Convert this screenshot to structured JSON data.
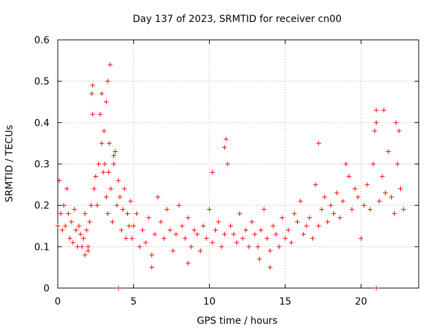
{
  "chart_data": {
    "type": "scatter",
    "title": "Day 137 of 2023, SRMTID for receiver cn00",
    "xlabel": "GPS time / hours",
    "ylabel": "SRMTID / TECUs",
    "xlim": [
      0,
      23.8
    ],
    "ylim": [
      0,
      0.6
    ],
    "xticks": [
      0,
      5,
      10,
      15,
      20
    ],
    "xtick_labels": [
      "0",
      "5",
      "10",
      "15",
      "20"
    ],
    "yticks": [
      0,
      0.1,
      0.2,
      0.3,
      0.4,
      0.5,
      0.6
    ],
    "ytick_labels": [
      "0",
      "0.1",
      "0.2",
      "0.3",
      "0.4",
      "0.5",
      "0.6"
    ],
    "grid": true,
    "marker": "+",
    "color": "#ff0000",
    "series": [
      {
        "name": "SRMTID",
        "x": [
          0.0,
          0.1,
          0.2,
          0.3,
          0.4,
          0.5,
          0.6,
          0.7,
          0.8,
          0.9,
          1.0,
          1.1,
          1.2,
          1.3,
          1.4,
          1.5,
          1.6,
          1.7,
          1.8,
          1.9,
          2.0,
          2.1,
          2.2,
          2.25,
          2.3,
          2.4,
          2.5,
          2.6,
          2.7,
          2.8,
          2.9,
          3.0,
          3.05,
          3.1,
          3.2,
          3.3,
          3.35,
          3.4,
          3.5,
          3.6,
          3.7,
          3.8,
          3.9,
          4.0,
          4.1,
          4.2,
          4.3,
          4.4,
          4.5,
          4.6,
          4.7,
          4.8,
          4.9,
          5.0,
          5.2,
          5.4,
          5.6,
          5.8,
          6.0,
          6.2,
          6.4,
          6.6,
          6.8,
          7.0,
          7.2,
          7.4,
          7.6,
          7.8,
          8.0,
          8.2,
          8.4,
          8.6,
          8.8,
          9.0,
          9.2,
          9.4,
          9.6,
          9.8,
          10.0,
          10.2,
          10.4,
          10.6,
          10.8,
          11.0,
          11.2,
          11.4,
          11.6,
          11.8,
          12.0,
          12.2,
          12.4,
          12.6,
          12.8,
          13.0,
          13.2,
          13.4,
          13.6,
          13.8,
          14.0,
          14.2,
          14.4,
          14.6,
          14.8,
          15.0,
          15.2,
          15.4,
          15.6,
          15.8,
          16.0,
          16.2,
          16.4,
          16.6,
          16.8,
          17.0,
          17.2,
          17.4,
          17.6,
          17.8,
          18.0,
          18.2,
          18.4,
          18.6,
          18.8,
          19.0,
          19.2,
          19.4,
          19.6,
          19.8,
          20.0,
          20.2,
          20.4,
          20.6,
          20.8,
          21.0,
          21.2,
          21.4,
          21.6,
          21.8,
          22.0,
          22.2,
          22.4,
          22.6,
          22.8,
          3.45,
          3.3,
          2.3,
          3.2,
          2.9,
          3.7,
          11.1,
          11.0,
          10.2,
          17.2,
          21.0,
          20.9,
          21.5,
          22.3,
          22.5,
          4.0,
          21.0,
          2.0,
          1.8,
          6.2,
          8.6,
          13.3,
          14.0
        ],
        "y": [
          0.15,
          0.26,
          0.18,
          0.14,
          0.2,
          0.15,
          0.24,
          0.18,
          0.12,
          0.16,
          0.11,
          0.19,
          0.14,
          0.1,
          0.15,
          0.13,
          0.1,
          0.12,
          0.18,
          0.14,
          0.1,
          0.16,
          0.2,
          0.47,
          0.42,
          0.24,
          0.27,
          0.2,
          0.3,
          0.42,
          0.35,
          0.28,
          0.38,
          0.3,
          0.22,
          0.18,
          0.28,
          0.35,
          0.24,
          0.16,
          0.3,
          0.33,
          0.2,
          0.26,
          0.22,
          0.14,
          0.19,
          0.24,
          0.12,
          0.18,
          0.15,
          0.21,
          0.12,
          0.15,
          0.18,
          0.1,
          0.14,
          0.11,
          0.17,
          0.08,
          0.13,
          0.22,
          0.16,
          0.12,
          0.19,
          0.14,
          0.09,
          0.13,
          0.2,
          0.15,
          0.12,
          0.17,
          0.1,
          0.14,
          0.13,
          0.09,
          0.15,
          0.12,
          0.19,
          0.11,
          0.14,
          0.16,
          0.1,
          0.13,
          0.3,
          0.15,
          0.13,
          0.11,
          0.18,
          0.12,
          0.14,
          0.1,
          0.16,
          0.13,
          0.1,
          0.14,
          0.19,
          0.12,
          0.09,
          0.15,
          0.13,
          0.1,
          0.17,
          0.12,
          0.14,
          0.11,
          0.18,
          0.16,
          0.21,
          0.13,
          0.15,
          0.17,
          0.12,
          0.25,
          0.15,
          0.19,
          0.22,
          0.16,
          0.2,
          0.18,
          0.23,
          0.17,
          0.21,
          0.3,
          0.27,
          0.19,
          0.24,
          0.22,
          0.12,
          0.2,
          0.25,
          0.19,
          0.3,
          0.4,
          0.21,
          0.27,
          0.23,
          0.33,
          0.22,
          0.18,
          0.3,
          0.24,
          0.19,
          0.54,
          0.5,
          0.49,
          0.45,
          0.47,
          0.32,
          0.36,
          0.34,
          0.28,
          0.35,
          0.43,
          0.38,
          0.43,
          0.4,
          0.38,
          0.0,
          0.0,
          0.09,
          0.08,
          0.05,
          0.06,
          0.07,
          0.05
        ]
      }
    ]
  }
}
